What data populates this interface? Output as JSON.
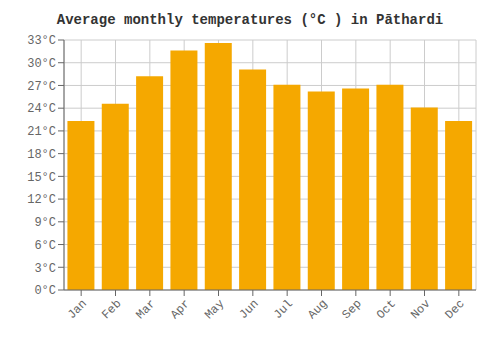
{
  "chart_data": {
    "type": "bar",
    "title": "Average monthly temperatures (°C ) in Pāthardi",
    "categories": [
      "Jan",
      "Feb",
      "Mar",
      "Apr",
      "May",
      "Jun",
      "Jul",
      "Aug",
      "Sep",
      "Oct",
      "Nov",
      "Dec"
    ],
    "values": [
      22.3,
      24.6,
      28.2,
      31.6,
      32.6,
      29.1,
      27.1,
      26.2,
      26.6,
      27.1,
      24.1,
      22.3
    ],
    "color": "#F5A800",
    "ylim": [
      0,
      33
    ],
    "yticks": [
      {
        "value": 0,
        "label": "0°C"
      },
      {
        "value": 3,
        "label": "3°C"
      },
      {
        "value": 6,
        "label": "6°C"
      },
      {
        "value": 9,
        "label": "9°C"
      },
      {
        "value": 12,
        "label": "12°C"
      },
      {
        "value": 15,
        "label": "15°C"
      },
      {
        "value": 18,
        "label": "18°C"
      },
      {
        "value": 21,
        "label": "21°C"
      },
      {
        "value": 24,
        "label": "24°C"
      },
      {
        "value": 27,
        "label": "27°C"
      },
      {
        "value": 30,
        "label": "30°C"
      },
      {
        "value": 33,
        "label": "33°C"
      }
    ],
    "grid": true
  }
}
